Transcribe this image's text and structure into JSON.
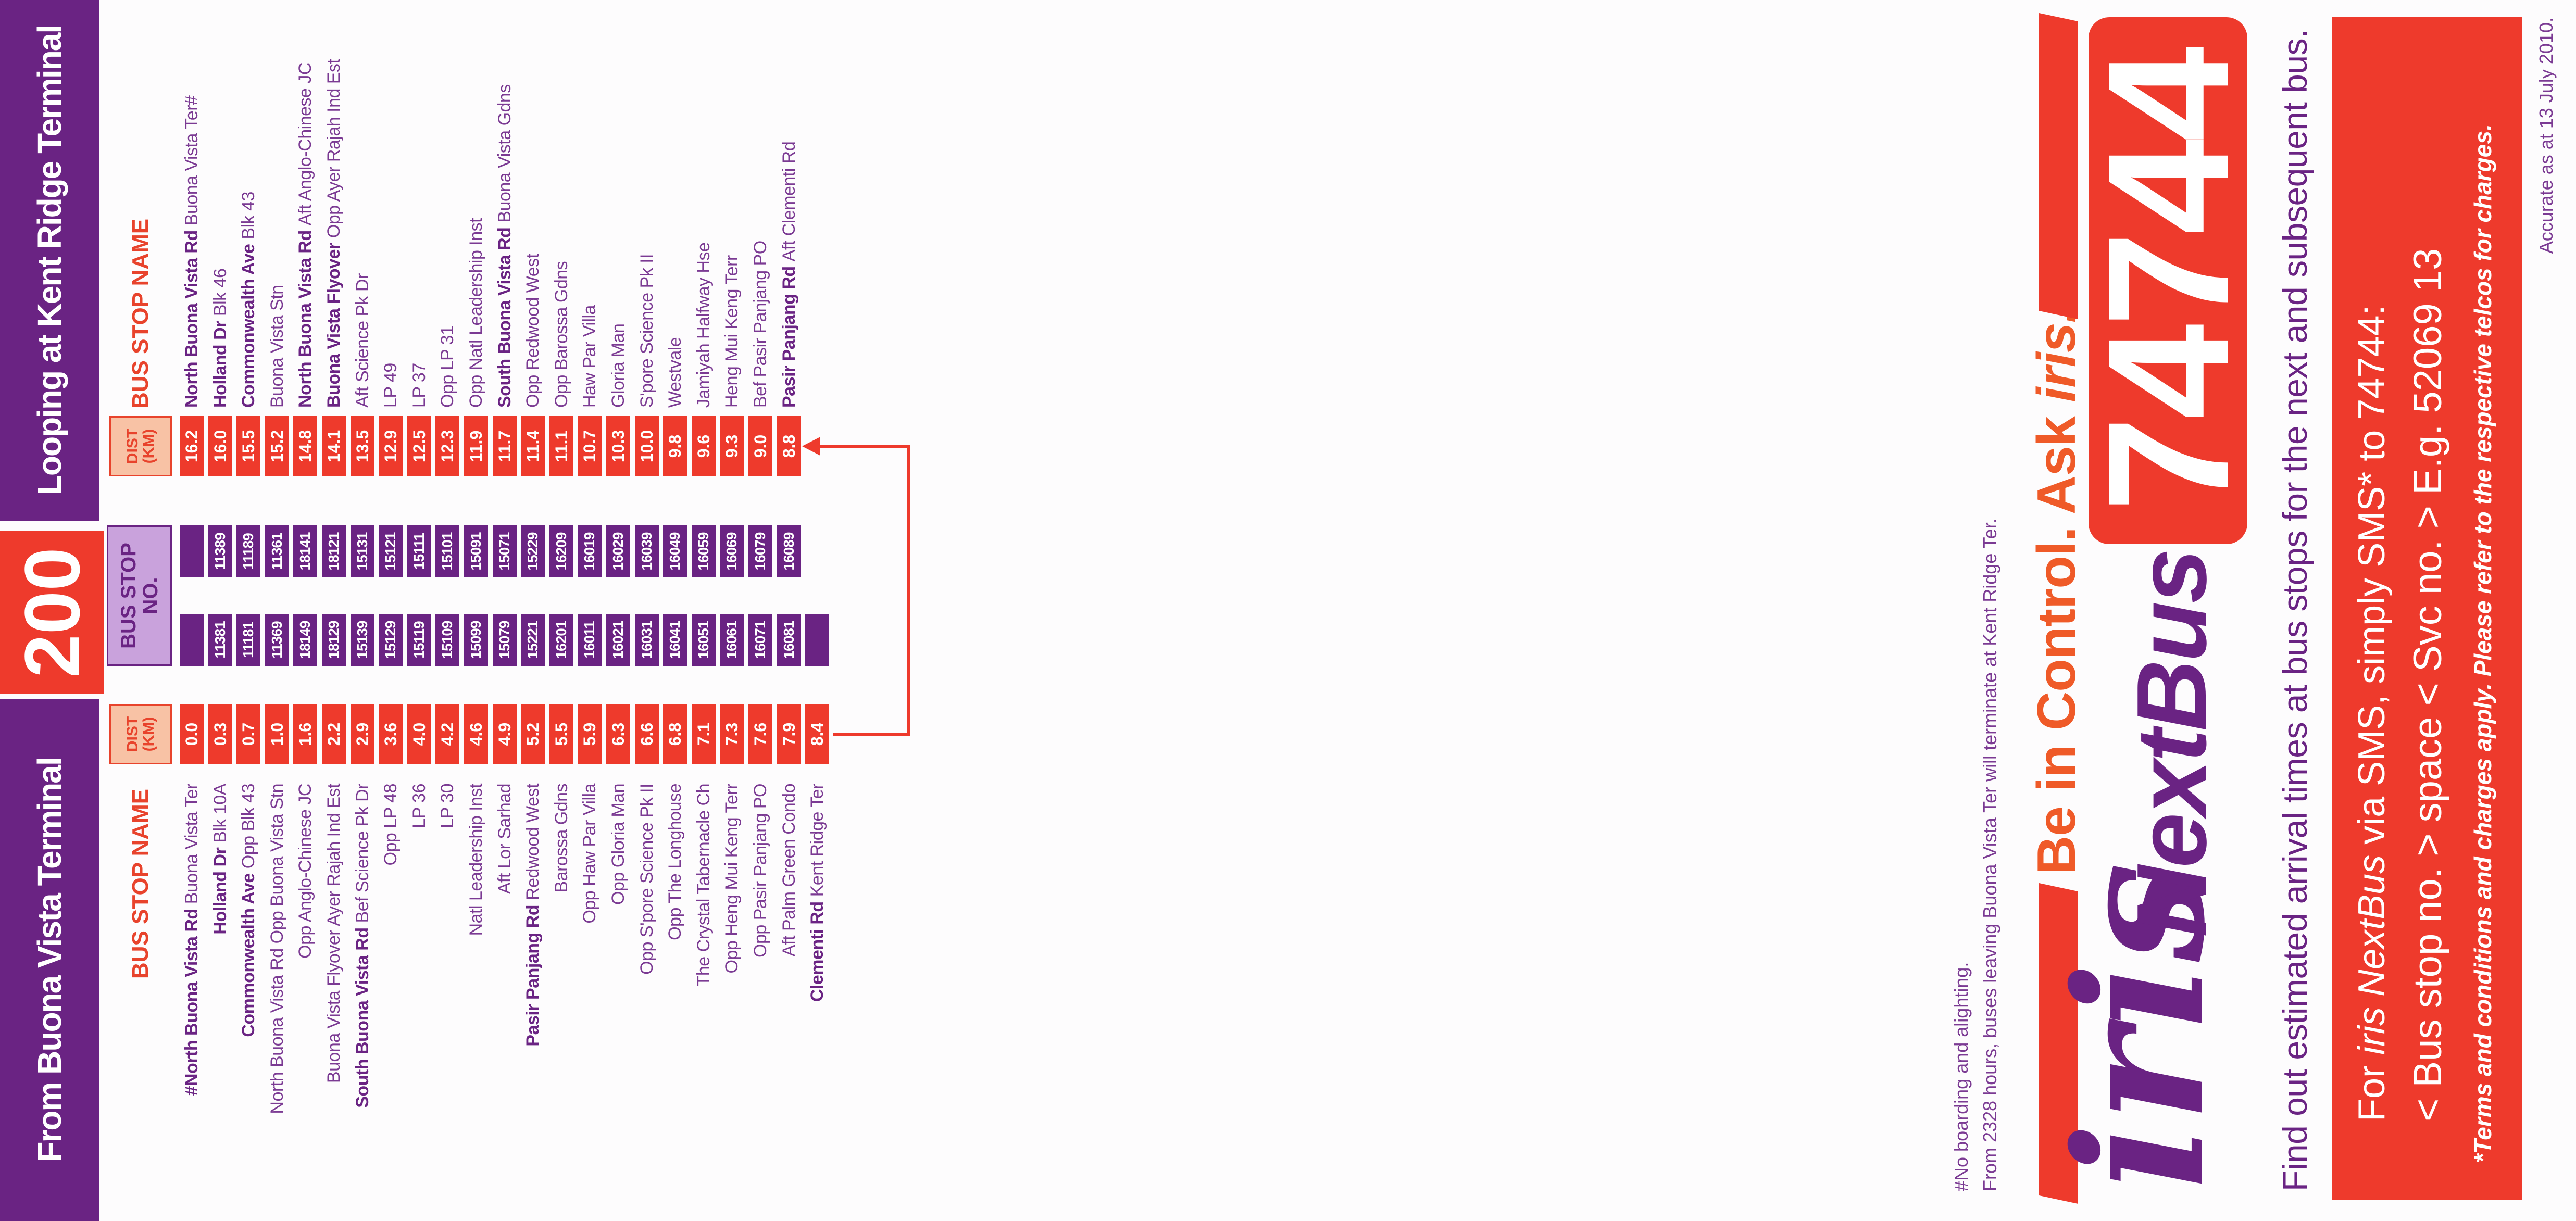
{
  "header": {
    "from": "From Buona Vista Terminal",
    "route": "200",
    "looping": "Looping at Kent Ridge Terminal"
  },
  "columns": {
    "left_name": "BUS STOP NAME",
    "left_dist": "DIST (KM)",
    "stop_no": "BUS STOP NO.",
    "right_dist": "DIST (KM)",
    "right_name": "BUS STOP NAME"
  },
  "outbound": [
    {
      "road": "#North Buona Vista Rd",
      "stop": "Buona Vista Ter",
      "dist": "0.0"
    },
    {
      "road": "Holland Dr",
      "stop": "Blk 10A",
      "dist": "0.3",
      "no": "11381"
    },
    {
      "road": "Commonwealth Ave",
      "stop": "Opp Blk 43",
      "dist": "0.7",
      "no": "11181"
    },
    {
      "stop": "North Buona Vista Rd Opp Buona Vista Stn",
      "dist": "1.0",
      "no": "11369"
    },
    {
      "stop": "Opp Anglo-Chinese JC",
      "dist": "1.6",
      "no": "18149"
    },
    {
      "stop": "Buona Vista Flyover Ayer Rajah Ind Est",
      "dist": "2.2",
      "no": "18129"
    },
    {
      "road": "South Buona Vista Rd",
      "stop": "Bef Science Pk Dr",
      "dist": "2.9",
      "no": "15139"
    },
    {
      "stop": "Opp LP 48",
      "dist": "3.6",
      "no": "15129"
    },
    {
      "stop": "LP 36",
      "dist": "4.0",
      "no": "15119"
    },
    {
      "stop": "LP 30",
      "dist": "4.2",
      "no": "15109"
    },
    {
      "stop": "Natl Leadership Inst",
      "dist": "4.6",
      "no": "15099"
    },
    {
      "stop": "Aft Lor Sarhad",
      "dist": "4.9",
      "no": "15079"
    },
    {
      "road": "Pasir Panjang Rd",
      "stop": "Redwood West",
      "dist": "5.2",
      "no": "15221"
    },
    {
      "stop": "Barossa Gdns",
      "dist": "5.5",
      "no": "16201"
    },
    {
      "stop": "Opp Haw Par Villa",
      "dist": "5.9",
      "no": "16011"
    },
    {
      "stop": "Opp Gloria Man",
      "dist": "6.3",
      "no": "16021"
    },
    {
      "stop": "Opp S'pore Science Pk II",
      "dist": "6.6",
      "no": "16031"
    },
    {
      "stop": "Opp The Longhouse",
      "dist": "6.8",
      "no": "16041"
    },
    {
      "stop": "The Crystal Tabernacle Ch",
      "dist": "7.1",
      "no": "16051"
    },
    {
      "stop": "Opp Heng Mui Keng Terr",
      "dist": "7.3",
      "no": "16061"
    },
    {
      "stop": "Opp Pasir Panjang PO",
      "dist": "7.6",
      "no": "16071"
    },
    {
      "stop": "Aft Palm Green Condo",
      "dist": "7.9",
      "no": "16081"
    },
    {
      "road": "Clementi Rd",
      "stop": "Kent Ridge Ter",
      "dist": "8.4"
    }
  ],
  "inbound": [
    {
      "road": "North Buona Vista Rd",
      "stop": "Buona Vista Ter#",
      "dist": "16.2"
    },
    {
      "road": "Holland Dr",
      "stop": "Blk 46",
      "dist": "16.0",
      "no": "11389"
    },
    {
      "road": "Commonwealth Ave",
      "stop": "Blk 43",
      "dist": "15.5",
      "no": "11189"
    },
    {
      "stop": "Buona Vista Stn",
      "dist": "15.2",
      "no": "11361"
    },
    {
      "road": "North Buona Vista Rd",
      "stop": "Aft Anglo-Chinese JC",
      "dist": "14.8",
      "no": "18141"
    },
    {
      "road": "Buona Vista Flyover",
      "stop": "Opp Ayer Rajah Ind Est",
      "dist": "14.1",
      "no": "18121"
    },
    {
      "stop": "Aft Science Pk Dr",
      "dist": "13.5",
      "no": "15131"
    },
    {
      "stop": "LP 49",
      "dist": "12.9",
      "no": "15121"
    },
    {
      "stop": "LP 37",
      "dist": "12.5",
      "no": "15111"
    },
    {
      "stop": "Opp LP 31",
      "dist": "12.3",
      "no": "15101"
    },
    {
      "stop": "Opp Natl Leadership Inst",
      "dist": "11.9",
      "no": "15091"
    },
    {
      "road": "South Buona Vista Rd",
      "stop": "Buona Vista Gdns",
      "dist": "11.7",
      "no": "15071"
    },
    {
      "stop": "Opp Redwood West",
      "dist": "11.4",
      "no": "15229"
    },
    {
      "stop": "Opp Barossa Gdns",
      "dist": "11.1",
      "no": "16209"
    },
    {
      "stop": "Haw Par Villa",
      "dist": "10.7",
      "no": "16019"
    },
    {
      "stop": "Gloria Man",
      "dist": "10.3",
      "no": "16029"
    },
    {
      "stop": "S'pore Science Pk II",
      "dist": "10.0",
      "no": "16039"
    },
    {
      "stop": "Westvale",
      "dist": "9.8",
      "no": "16049"
    },
    {
      "stop": "Jamiyah Halfway Hse",
      "dist": "9.6",
      "no": "16059"
    },
    {
      "stop": "Heng Mui Keng Terr",
      "dist": "9.3",
      "no": "16069"
    },
    {
      "stop": "Bef Pasir Panjang PO",
      "dist": "9.0",
      "no": "16079"
    },
    {
      "road": "Pasir Panjang Rd",
      "stop": "Aft Clementi Rd",
      "dist": "8.8",
      "no": "16089"
    }
  ],
  "notes": [
    "#No boarding and alighting.",
    "From 2328 hours, buses leaving Buona Vista Ter will terminate at Kent Ridge Ter."
  ],
  "promo": {
    "tagline_pre": "Be in Control. Ask ",
    "tagline_brand": "iris.",
    "logo_iris": "iris",
    "logo_nextbus": "NextBus",
    "number": "74744",
    "description": "Find out estimated arrival times at bus stops for the next and subsequent bus.",
    "sms_pre": "For ",
    "sms_brand": "iris NextBus",
    "sms_post": " via SMS, simply SMS* to 74744:",
    "sms_format": "< Bus stop no. > space < Svc no. > E.g. 52069 13",
    "terms": "*Terms and conditions and charges apply. Please refer to the respective telcos for charges."
  },
  "accuracy": "Accurate as at 13 July 2010."
}
